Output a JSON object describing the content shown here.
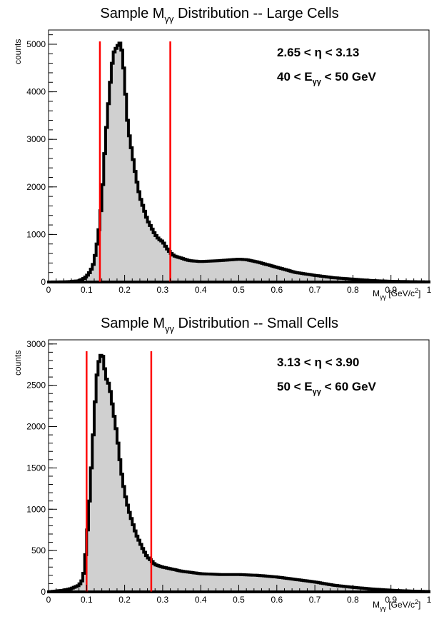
{
  "chart_data": [
    {
      "type": "histogram",
      "title_main": "Sample M",
      "title_sub": "γγ",
      "title_rest": " Distribution -- Large Cells",
      "ylabel": "counts",
      "xlabel_main": "M",
      "xlabel_sub": "γγ",
      "xlabel_unit": "[GeV/c",
      "xlabel_sup": "2",
      "xlabel_close": "]",
      "annotation_eta": "2.65 < η < 3.13",
      "annotation_e_prefix": "40 < E",
      "annotation_e_sub": "γγ",
      "annotation_e_suffix": " < 50 GeV",
      "xlim": [
        0,
        1
      ],
      "ylim": [
        0,
        5300
      ],
      "x_ticks": [
        "0",
        "0.1",
        "0.2",
        "0.3",
        "0.4",
        "0.5",
        "0.6",
        "0.7",
        "0.8",
        "0.9",
        "1"
      ],
      "y_ticks": [
        "0",
        "1000",
        "2000",
        "3000",
        "4000",
        "5000"
      ],
      "fill_color": "#d0d0d0",
      "line_color": "#000000",
      "cut_color": "#ff0000",
      "cuts": [
        0.135,
        0.32
      ],
      "points": [
        [
          0,
          0
        ],
        [
          0.05,
          5
        ],
        [
          0.08,
          25
        ],
        [
          0.09,
          60
        ],
        [
          0.1,
          120
        ],
        [
          0.11,
          220
        ],
        [
          0.12,
          420
        ],
        [
          0.125,
          700
        ],
        [
          0.13,
          900
        ],
        [
          0.135,
          1300
        ],
        [
          0.14,
          1700
        ],
        [
          0.145,
          2400
        ],
        [
          0.15,
          3000
        ],
        [
          0.155,
          3500
        ],
        [
          0.16,
          4000
        ],
        [
          0.165,
          4400
        ],
        [
          0.17,
          4800
        ],
        [
          0.18,
          4950
        ],
        [
          0.19,
          5050
        ],
        [
          0.195,
          4700
        ],
        [
          0.2,
          4300
        ],
        [
          0.205,
          3600
        ],
        [
          0.21,
          3200
        ],
        [
          0.22,
          2700
        ],
        [
          0.23,
          2200
        ],
        [
          0.24,
          1800
        ],
        [
          0.25,
          1550
        ],
        [
          0.26,
          1300
        ],
        [
          0.27,
          1150
        ],
        [
          0.28,
          1000
        ],
        [
          0.29,
          900
        ],
        [
          0.3,
          850
        ],
        [
          0.31,
          720
        ],
        [
          0.32,
          620
        ],
        [
          0.33,
          550
        ],
        [
          0.35,
          500
        ],
        [
          0.37,
          450
        ],
        [
          0.4,
          430
        ],
        [
          0.45,
          450
        ],
        [
          0.5,
          480
        ],
        [
          0.52,
          470
        ],
        [
          0.55,
          420
        ],
        [
          0.6,
          310
        ],
        [
          0.65,
          200
        ],
        [
          0.7,
          140
        ],
        [
          0.75,
          90
        ],
        [
          0.8,
          60
        ],
        [
          0.85,
          30
        ],
        [
          0.9,
          15
        ],
        [
          0.95,
          8
        ],
        [
          1.0,
          3
        ]
      ]
    },
    {
      "type": "histogram",
      "title_main": "Sample M",
      "title_sub": "γγ",
      "title_rest": " Distribution -- Small Cells",
      "ylabel": "counts",
      "xlabel_main": "M",
      "xlabel_sub": "γγ",
      "xlabel_unit": "[GeV/c",
      "xlabel_sup": "2",
      "xlabel_close": "]",
      "annotation_eta": "3.13 < η < 3.90",
      "annotation_e_prefix": "50 < E",
      "annotation_e_sub": "γγ",
      "annotation_e_suffix": " < 60 GeV",
      "xlim": [
        0,
        1
      ],
      "ylim": [
        0,
        3050
      ],
      "x_ticks": [
        "0",
        "0.1",
        "0.2",
        "0.3",
        "0.4",
        "0.5",
        "0.6",
        "0.7",
        "0.8",
        "0.9",
        "1"
      ],
      "y_ticks": [
        "0",
        "500",
        "1000",
        "1500",
        "2000",
        "2500",
        "3000"
      ],
      "fill_color": "#d0d0d0",
      "line_color": "#000000",
      "cut_color": "#ff0000",
      "cuts": [
        0.1,
        0.27
      ],
      "points": [
        [
          0,
          0
        ],
        [
          0.04,
          20
        ],
        [
          0.06,
          40
        ],
        [
          0.08,
          80
        ],
        [
          0.09,
          150
        ],
        [
          0.095,
          300
        ],
        [
          0.1,
          600
        ],
        [
          0.105,
          900
        ],
        [
          0.11,
          1300
        ],
        [
          0.115,
          1700
        ],
        [
          0.12,
          2100
        ],
        [
          0.125,
          2500
        ],
        [
          0.13,
          2750
        ],
        [
          0.14,
          2900
        ],
        [
          0.145,
          2800
        ],
        [
          0.15,
          2600
        ],
        [
          0.16,
          2500
        ],
        [
          0.17,
          2200
        ],
        [
          0.18,
          1900
        ],
        [
          0.19,
          1500
        ],
        [
          0.2,
          1200
        ],
        [
          0.21,
          1000
        ],
        [
          0.22,
          850
        ],
        [
          0.23,
          700
        ],
        [
          0.24,
          600
        ],
        [
          0.25,
          500
        ],
        [
          0.26,
          420
        ],
        [
          0.27,
          380
        ],
        [
          0.28,
          330
        ],
        [
          0.3,
          300
        ],
        [
          0.35,
          250
        ],
        [
          0.4,
          220
        ],
        [
          0.45,
          210
        ],
        [
          0.5,
          210
        ],
        [
          0.55,
          200
        ],
        [
          0.6,
          180
        ],
        [
          0.65,
          150
        ],
        [
          0.7,
          120
        ],
        [
          0.75,
          80
        ],
        [
          0.8,
          55
        ],
        [
          0.85,
          35
        ],
        [
          0.9,
          20
        ],
        [
          0.95,
          10
        ],
        [
          1.0,
          4
        ]
      ]
    }
  ]
}
